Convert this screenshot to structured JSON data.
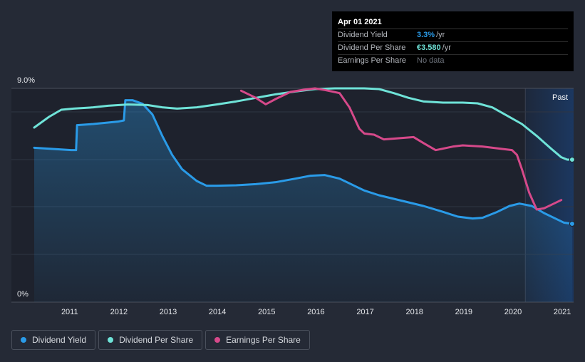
{
  "chart_data": {
    "type": "line",
    "y_axis": {
      "ticks": [
        "9.0%",
        "0%"
      ],
      "min": 0,
      "max": 9.0
    },
    "x_axis": {
      "tick_labels": [
        "2011",
        "2012",
        "2013",
        "2014",
        "2015",
        "2016",
        "2017",
        "2018",
        "2019",
        "2020",
        "2021"
      ],
      "range": [
        2010.3,
        2021.25
      ]
    },
    "past_label": "Past",
    "past_region_start": 2020.27,
    "series": [
      {
        "name": "Dividend Yield",
        "color": "#2a9be8",
        "unit": "percent",
        "points": [
          [
            2010.3,
            6.5
          ],
          [
            2011.05,
            6.4
          ],
          [
            2011.15,
            6.4
          ],
          [
            2011.17,
            7.45
          ],
          [
            2011.5,
            7.5
          ],
          [
            2012.0,
            7.6
          ],
          [
            2012.12,
            7.65
          ],
          [
            2012.15,
            8.5
          ],
          [
            2012.3,
            8.5
          ],
          [
            2012.5,
            8.35
          ],
          [
            2012.7,
            7.9
          ],
          [
            2012.9,
            7.0
          ],
          [
            2013.1,
            6.2
          ],
          [
            2013.3,
            5.6
          ],
          [
            2013.6,
            5.1
          ],
          [
            2013.8,
            4.9
          ],
          [
            2014.0,
            4.9
          ],
          [
            2014.4,
            4.92
          ],
          [
            2014.8,
            4.97
          ],
          [
            2015.2,
            5.05
          ],
          [
            2015.6,
            5.2
          ],
          [
            2015.9,
            5.32
          ],
          [
            2016.2,
            5.35
          ],
          [
            2016.5,
            5.2
          ],
          [
            2016.8,
            4.9
          ],
          [
            2017.0,
            4.7
          ],
          [
            2017.3,
            4.5
          ],
          [
            2017.6,
            4.35
          ],
          [
            2017.9,
            4.2
          ],
          [
            2018.2,
            4.05
          ],
          [
            2018.6,
            3.8
          ],
          [
            2018.9,
            3.6
          ],
          [
            2019.2,
            3.52
          ],
          [
            2019.4,
            3.55
          ],
          [
            2019.7,
            3.8
          ],
          [
            2019.95,
            4.05
          ],
          [
            2020.15,
            4.15
          ],
          [
            2020.4,
            4.05
          ],
          [
            2020.65,
            3.75
          ],
          [
            2020.9,
            3.5
          ],
          [
            2021.05,
            3.35
          ],
          [
            2021.22,
            3.3
          ]
        ],
        "fill": true
      },
      {
        "name": "Dividend Per Share",
        "color": "#6fe3d8",
        "unit": "percent-scale",
        "points": [
          [
            2010.3,
            7.35
          ],
          [
            2010.6,
            7.8
          ],
          [
            2010.85,
            8.1
          ],
          [
            2011.1,
            8.15
          ],
          [
            2011.5,
            8.2
          ],
          [
            2011.8,
            8.27
          ],
          [
            2012.2,
            8.32
          ],
          [
            2012.6,
            8.3
          ],
          [
            2012.9,
            8.2
          ],
          [
            2013.2,
            8.15
          ],
          [
            2013.6,
            8.2
          ],
          [
            2014.0,
            8.32
          ],
          [
            2014.4,
            8.45
          ],
          [
            2014.8,
            8.6
          ],
          [
            2015.2,
            8.75
          ],
          [
            2015.6,
            8.87
          ],
          [
            2016.0,
            8.97
          ],
          [
            2016.4,
            9.0
          ],
          [
            2016.8,
            9.0
          ],
          [
            2017.0,
            9.0
          ],
          [
            2017.3,
            8.97
          ],
          [
            2017.6,
            8.8
          ],
          [
            2017.9,
            8.6
          ],
          [
            2018.2,
            8.45
          ],
          [
            2018.6,
            8.4
          ],
          [
            2019.0,
            8.4
          ],
          [
            2019.3,
            8.37
          ],
          [
            2019.6,
            8.2
          ],
          [
            2019.9,
            7.85
          ],
          [
            2020.2,
            7.5
          ],
          [
            2020.5,
            7.0
          ],
          [
            2020.8,
            6.45
          ],
          [
            2021.0,
            6.1
          ],
          [
            2021.12,
            6.0
          ],
          [
            2021.22,
            6.0
          ]
        ]
      },
      {
        "name": "Earnings Per Share",
        "color": "#d6498a",
        "unit": "percent-scale",
        "points": [
          [
            2014.5,
            8.9
          ],
          [
            2014.8,
            8.6
          ],
          [
            2015.0,
            8.33
          ],
          [
            2015.2,
            8.55
          ],
          [
            2015.5,
            8.85
          ],
          [
            2015.8,
            8.95
          ],
          [
            2016.0,
            9.0
          ],
          [
            2016.2,
            8.93
          ],
          [
            2016.5,
            8.8
          ],
          [
            2016.7,
            8.2
          ],
          [
            2016.9,
            7.3
          ],
          [
            2017.0,
            7.1
          ],
          [
            2017.2,
            7.05
          ],
          [
            2017.4,
            6.85
          ],
          [
            2017.7,
            6.9
          ],
          [
            2018.0,
            6.95
          ],
          [
            2018.2,
            6.7
          ],
          [
            2018.45,
            6.4
          ],
          [
            2018.8,
            6.55
          ],
          [
            2019.0,
            6.6
          ],
          [
            2019.4,
            6.55
          ],
          [
            2019.8,
            6.45
          ],
          [
            2020.0,
            6.4
          ],
          [
            2020.1,
            6.2
          ],
          [
            2020.2,
            5.6
          ],
          [
            2020.35,
            4.6
          ],
          [
            2020.5,
            3.9
          ],
          [
            2020.65,
            3.95
          ],
          [
            2020.85,
            4.15
          ],
          [
            2021.0,
            4.3
          ]
        ]
      }
    ],
    "end_markers": [
      "Dividend Yield",
      "Dividend Per Share"
    ]
  },
  "tooltip": {
    "date": "Apr 01 2021",
    "rows": [
      {
        "label": "Dividend Yield",
        "value": "3.3%",
        "unit": "/yr",
        "color": "#2a9be8"
      },
      {
        "label": "Dividend Per Share",
        "value": "€3.580",
        "unit": "/yr",
        "color": "#6fe3d8"
      },
      {
        "label": "Earnings Per Share",
        "value": "No data",
        "unit": "",
        "color": "#6e737c"
      }
    ]
  },
  "legend": [
    {
      "label": "Dividend Yield",
      "color": "#2a9be8"
    },
    {
      "label": "Dividend Per Share",
      "color": "#6fe3d8"
    },
    {
      "label": "Earnings Per Share",
      "color": "#d6498a"
    }
  ]
}
